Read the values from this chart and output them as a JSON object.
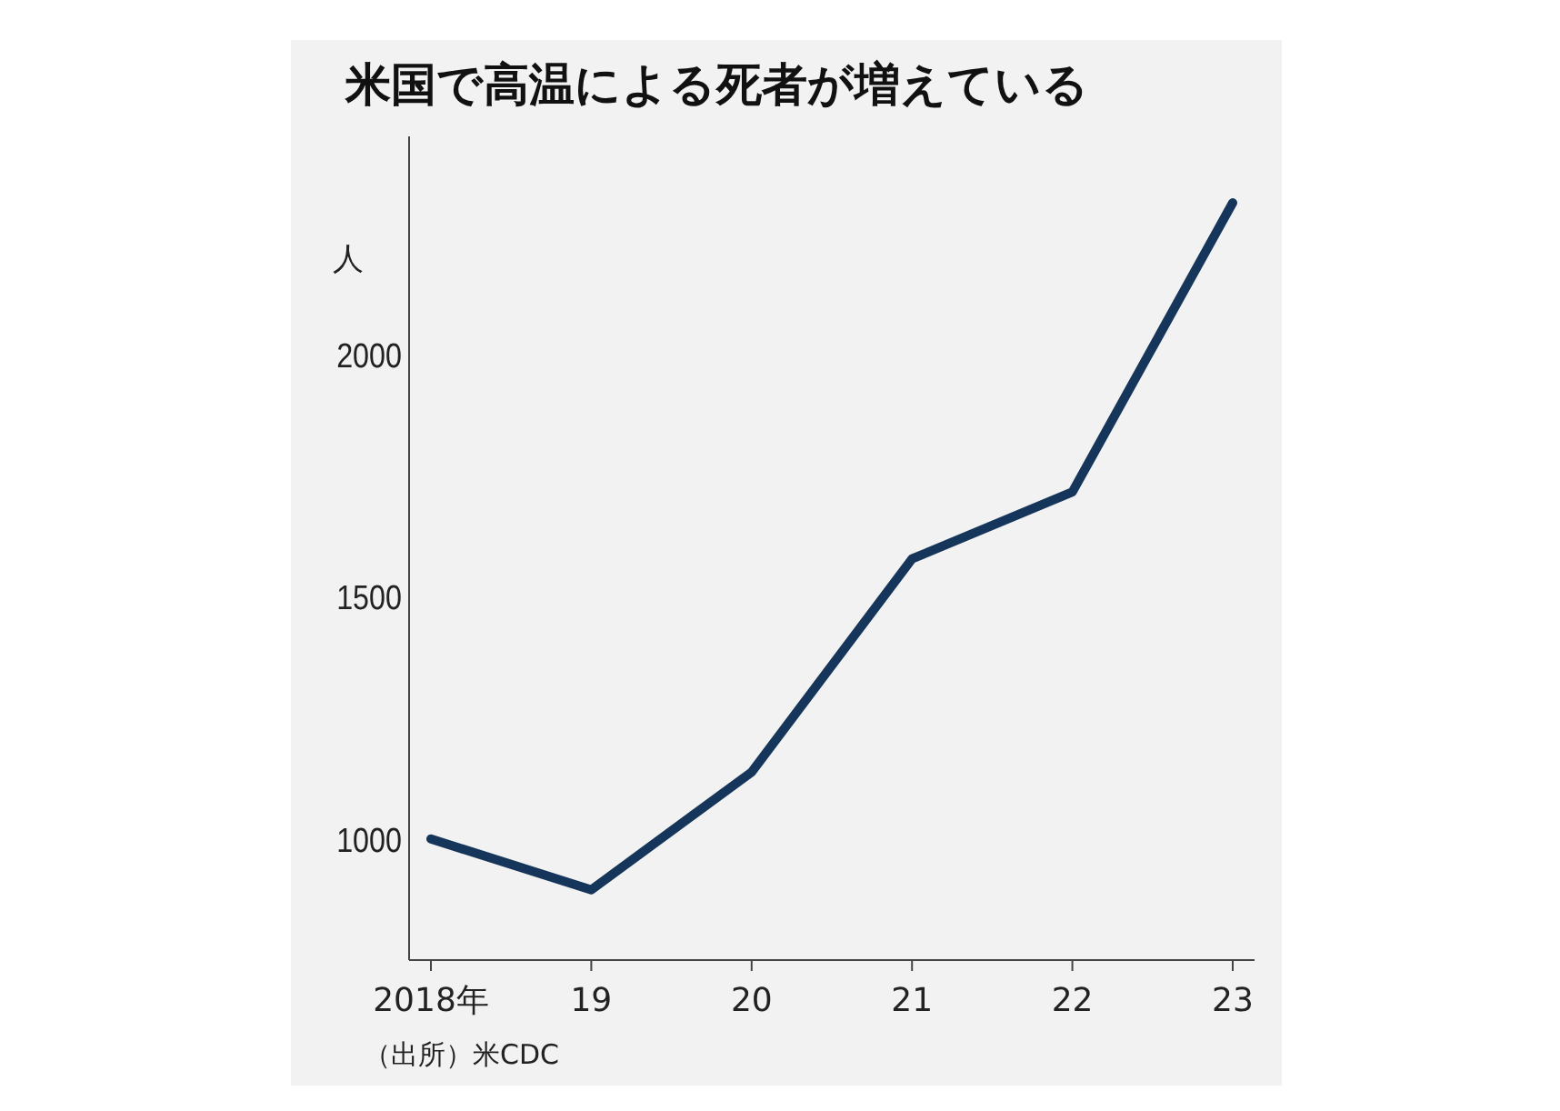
{
  "chart_data": {
    "type": "line",
    "title": "米国で高温による死者が増えている",
    "ylabel": "人",
    "categories": [
      "2018年",
      "19",
      "20",
      "21",
      "22",
      "23"
    ],
    "values": [
      1000,
      895,
      1138,
      1578,
      1716,
      2313
    ],
    "color": "#15365a",
    "ylim": [
      750,
      2450
    ],
    "yticks": [
      1000,
      1500,
      2000
    ],
    "marker": "none",
    "annotations": [
      "（出所）米CDC"
    ]
  }
}
